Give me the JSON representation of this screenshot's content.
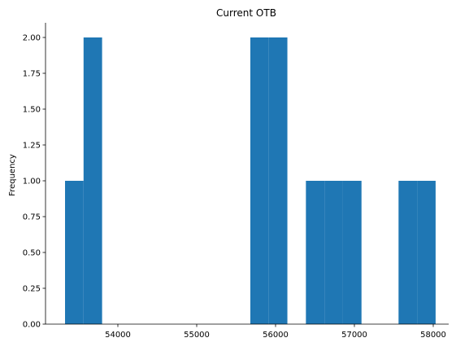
{
  "chart_data": {
    "type": "histogram",
    "title": "Current OTB",
    "xlabel": "",
    "ylabel": "Frequency",
    "xlim": [
      53100,
      58250
    ],
    "ylim": [
      0,
      2.1
    ],
    "x_ticks": [
      54000,
      55000,
      56000,
      57000,
      58000
    ],
    "x_tick_labels": [
      "54000",
      "55000",
      "56000",
      "57000",
      "58000"
    ],
    "y_ticks": [
      0,
      0.25,
      0.5,
      0.75,
      1.0,
      1.25,
      1.5,
      1.75,
      2.0
    ],
    "y_tick_labels": [
      "0.00",
      "0.25",
      "0.50",
      "0.75",
      "1.00",
      "1.25",
      "1.50",
      "1.75",
      "2.00"
    ],
    "bins": [
      {
        "x0": 53330,
        "x1": 53565,
        "value": 1
      },
      {
        "x0": 53565,
        "x1": 53800,
        "value": 2
      },
      {
        "x0": 55680,
        "x1": 55915,
        "value": 2
      },
      {
        "x0": 55915,
        "x1": 56150,
        "value": 2
      },
      {
        "x0": 56385,
        "x1": 56620,
        "value": 1
      },
      {
        "x0": 56620,
        "x1": 56855,
        "value": 1
      },
      {
        "x0": 56855,
        "x1": 57090,
        "value": 1
      },
      {
        "x0": 57560,
        "x1": 57795,
        "value": 1
      },
      {
        "x0": 57795,
        "x1": 58030,
        "value": 1
      }
    ],
    "bar_color": "#1f77b4",
    "grid": false,
    "legend": "none"
  }
}
